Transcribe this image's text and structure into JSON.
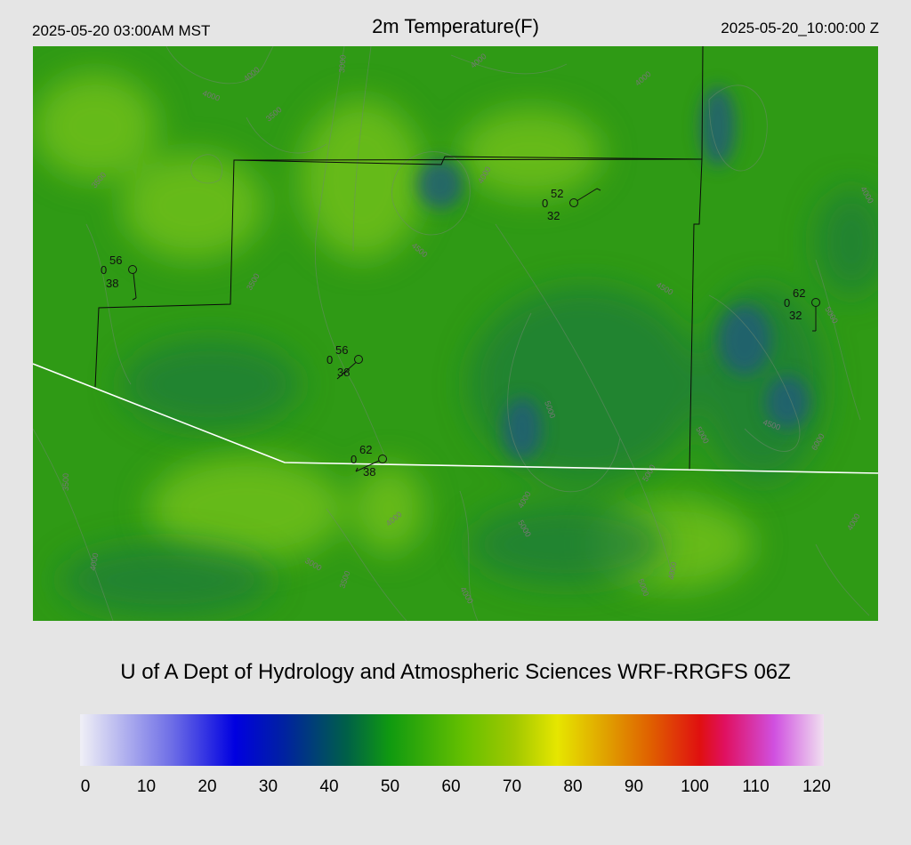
{
  "header": {
    "local_time": "2025-05-20 03:00AM MST",
    "title": "2m Temperature(F)",
    "utc_time": "2025-05-20_10:00:00 Z"
  },
  "credit": "U of A Dept of Hydrology and Atmospheric Sciences WRF-RRGFS 06Z",
  "colorbar": {
    "ticks": [
      "0",
      "10",
      "20",
      "30",
      "40",
      "50",
      "60",
      "70",
      "80",
      "90",
      "100",
      "110",
      "120"
    ],
    "stops": [
      {
        "value": 0,
        "color": "#f0f0f6"
      },
      {
        "value": 15,
        "color": "#6c6ce6"
      },
      {
        "value": 25,
        "color": "#0000e0"
      },
      {
        "value": 33,
        "color": "#0022a0"
      },
      {
        "value": 43,
        "color": "#006048"
      },
      {
        "value": 50,
        "color": "#109a10"
      },
      {
        "value": 62,
        "color": "#66c000"
      },
      {
        "value": 70,
        "color": "#a0c800"
      },
      {
        "value": 77,
        "color": "#e6e600"
      },
      {
        "value": 85,
        "color": "#e0a000"
      },
      {
        "value": 92,
        "color": "#e06000"
      },
      {
        "value": 100,
        "color": "#e01010"
      },
      {
        "value": 104,
        "color": "#e01060"
      },
      {
        "value": 112,
        "color": "#d050e0"
      },
      {
        "value": 120,
        "color": "#f0e0f0"
      }
    ]
  },
  "map": {
    "field_colors": {
      "base": "#2f9a15",
      "warm": "#78c418",
      "cool": "#1a7a3a",
      "cold": "#1e5a7a"
    },
    "contour_labels": [
      "4000",
      "4000",
      "3500",
      "3000",
      "4000",
      "3500",
      "4000",
      "4500",
      "3500",
      "4000",
      "5000",
      "5000",
      "4500",
      "5000",
      "4000",
      "5000",
      "6000",
      "5000",
      "4500",
      "4000",
      "3500",
      "4000",
      "3500",
      "3000",
      "4000",
      "4000",
      "5000",
      "4000",
      "4000"
    ],
    "stations": [
      {
        "temp": "56",
        "dew": "38",
        "cloud": "0"
      },
      {
        "temp": "56",
        "dew": "38",
        "cloud": "0"
      },
      {
        "temp": "62",
        "dew": "38",
        "cloud": "0"
      },
      {
        "temp": "52",
        "dew": "32",
        "cloud": "0"
      },
      {
        "temp": "62",
        "dew": "32",
        "cloud": "0"
      }
    ]
  }
}
